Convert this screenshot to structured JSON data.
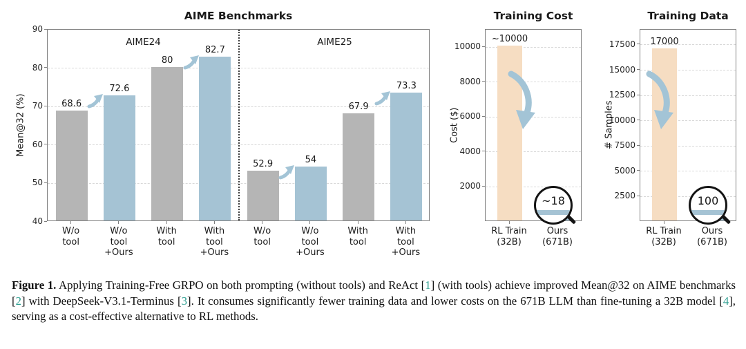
{
  "colors": {
    "gray_bar": "#b5b5b5",
    "blue_bar": "#a5c3d4",
    "peach_bar": "#f6ddc2",
    "arrow": "#a3c4d6",
    "grid": "#d8d8d8",
    "axis": "#7f7f7f",
    "text": "#1a1a1a",
    "cite": "#2a9d8f",
    "magnifier_ring": "#141414"
  },
  "icons": {
    "improvement_arrow": "curved-up-right-arrow",
    "decrease_arrow": "curved-down-arrow",
    "magnifier": "magnifying-glass-circle"
  },
  "chart_data": [
    {
      "id": "aime",
      "type": "bar",
      "title": "AIME Benchmarks",
      "ylabel": "Mean@32 (%)",
      "ylim": [
        40,
        90
      ],
      "yticks": [
        40,
        50,
        60,
        70,
        80,
        90
      ],
      "grid": "dashed-horizontal",
      "groups": [
        {
          "label": "AIME24"
        },
        {
          "label": "AIME25"
        }
      ],
      "categories": [
        [
          "W/o",
          "tool"
        ],
        [
          "W/o",
          "tool",
          "+Ours"
        ],
        [
          "With",
          "tool"
        ],
        [
          "With",
          "tool",
          "+Ours"
        ],
        [
          "W/o",
          "tool"
        ],
        [
          "W/o",
          "tool",
          "+Ours"
        ],
        [
          "With",
          "tool"
        ],
        [
          "With",
          "tool",
          "+Ours"
        ]
      ],
      "values": [
        68.6,
        72.6,
        80,
        82.7,
        52.9,
        54,
        67.9,
        73.3
      ],
      "value_labels": [
        "68.6",
        "72.6",
        "80",
        "82.7",
        "52.9",
        "54",
        "67.9",
        "73.3"
      ],
      "bar_colors": [
        "gray",
        "blue",
        "gray",
        "blue",
        "gray",
        "blue",
        "gray",
        "blue"
      ],
      "separator_after_index": 3,
      "arrows_between_pairs": [
        [
          0,
          1
        ],
        [
          2,
          3
        ],
        [
          4,
          5
        ],
        [
          6,
          7
        ]
      ]
    },
    {
      "id": "cost",
      "type": "bar",
      "title": "Training Cost",
      "ylabel": "Cost ($)",
      "ylim": [
        0,
        11000
      ],
      "yticks": [
        2000,
        4000,
        6000,
        8000,
        10000
      ],
      "grid": "dashed-horizontal",
      "categories": [
        [
          "RL Train",
          "(32B)"
        ],
        [
          "Ours",
          "(671B)"
        ]
      ],
      "values": [
        10000,
        18
      ],
      "bar_colors": [
        "peach",
        "blue"
      ],
      "annotations": [
        {
          "bar": 0,
          "text": "~10000"
        }
      ],
      "magnifier": {
        "bar": 1,
        "text": "~18"
      },
      "down_arrow": true
    },
    {
      "id": "data",
      "type": "bar",
      "title": "Training Data",
      "ylabel": "# Samples",
      "ylim": [
        0,
        19000
      ],
      "yticks": [
        2500,
        5000,
        7500,
        10000,
        12500,
        15000,
        17500
      ],
      "grid": "dashed-horizontal",
      "categories": [
        [
          "RL Train",
          "(32B)"
        ],
        [
          "Ours",
          "(671B)"
        ]
      ],
      "values": [
        17000,
        100
      ],
      "bar_colors": [
        "peach",
        "blue"
      ],
      "annotations": [
        {
          "bar": 0,
          "text": "17000"
        }
      ],
      "magnifier": {
        "bar": 1,
        "text": "100"
      },
      "down_arrow": true
    }
  ],
  "caption": {
    "segments": [
      {
        "text": "Figure 1.",
        "style": "bold"
      },
      {
        "text": " Applying Training-Free GRPO on both prompting (without tools) and ReAct ",
        "style": "plain"
      },
      {
        "text": "[",
        "style": "plain"
      },
      {
        "text": "1",
        "style": "cite"
      },
      {
        "text": "]",
        "style": "plain"
      },
      {
        "text": " (with tools) achieve improved Mean@32 on AIME benchmarks ",
        "style": "plain"
      },
      {
        "text": "[",
        "style": "plain"
      },
      {
        "text": "2",
        "style": "cite"
      },
      {
        "text": "]",
        "style": "plain"
      },
      {
        "text": " with DeepSeek-V3.1-Terminus ",
        "style": "plain"
      },
      {
        "text": "[",
        "style": "plain"
      },
      {
        "text": "3",
        "style": "cite"
      },
      {
        "text": "]",
        "style": "plain"
      },
      {
        "text": ". It consumes significantly fewer training data and lower costs on the 671B LLM than fine-tuning a 32B model ",
        "style": "plain"
      },
      {
        "text": "[",
        "style": "plain"
      },
      {
        "text": "4",
        "style": "cite"
      },
      {
        "text": "]",
        "style": "plain"
      },
      {
        "text": ", serving as a cost-effective alternative to RL methods.",
        "style": "plain"
      }
    ]
  }
}
